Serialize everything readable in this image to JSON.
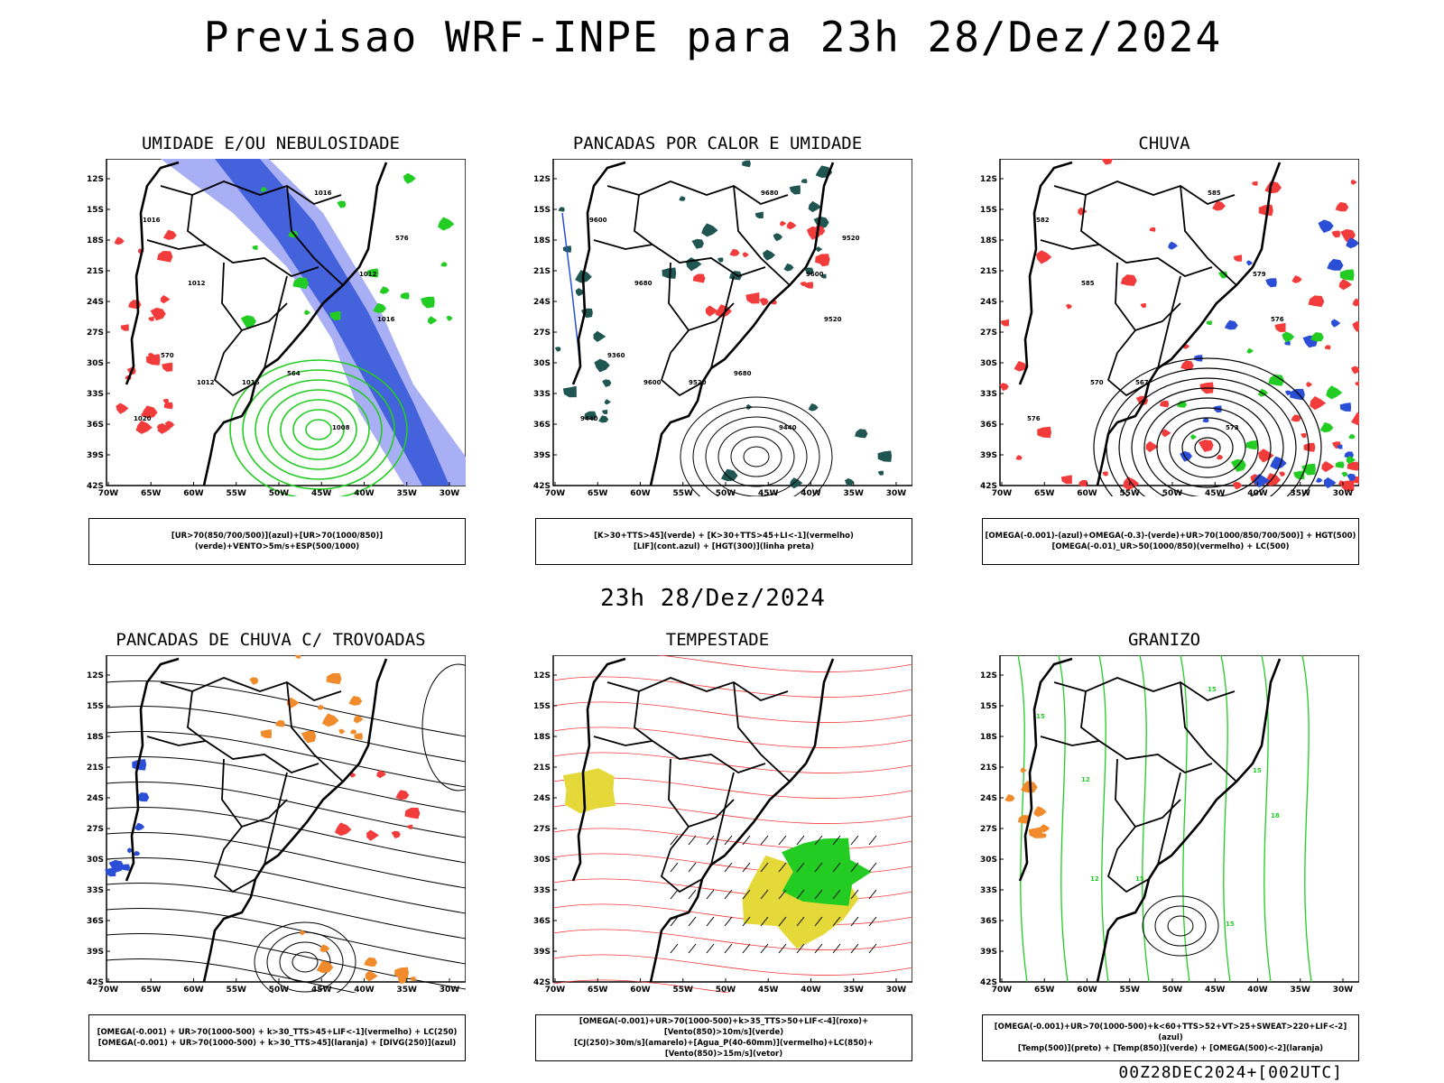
{
  "header": {
    "title": "Previsao WRF-INPE  para 23h 28/Dez/2024"
  },
  "mid_title": "23h 28/Dez/2024",
  "footer": "00Z28DEC2024+[002UTC]",
  "axes": {
    "lat_labels": [
      "12S",
      "15S",
      "18S",
      "21S",
      "24S",
      "27S",
      "30S",
      "33S",
      "36S",
      "39S",
      "42S"
    ],
    "lon_labels": [
      "70W",
      "65W",
      "60W",
      "55W",
      "50W",
      "45W",
      "40W",
      "35W",
      "30W"
    ]
  },
  "colors": {
    "blue": "#2a4fd6",
    "lightblue": "#a8aff5",
    "green": "#22cc22",
    "red": "#f23b3b",
    "darkteal": "#1f5652",
    "orange": "#f08a2a",
    "yellow": "#e5d93a"
  },
  "panels": [
    {
      "id": "umidade",
      "title": "UMIDADE E/OU NEBULOSIDADE",
      "legend": [
        "[UR>70(850/700/500)](azul)+[UR>70(1000/850)](verde)+VENTO>5m/s+ESP(500/1000)"
      ],
      "contour_labels": [
        "1016",
        "1012",
        "1016",
        "1012",
        "1016",
        "1008",
        "1012",
        "1016",
        "1020",
        "570",
        "576",
        "564"
      ]
    },
    {
      "id": "pancadas",
      "title": "PANCADAS POR CALOR E UMIDADE",
      "legend": [
        "[K>30+TTS>45](verde) + [K>30+TTS>45+LI<-1](vermelho)",
        "[LIF](cont.azul) + [HGT(300)](linha preta)"
      ],
      "contour_labels": [
        "9600",
        "9680",
        "9680",
        "9600",
        "9520",
        "9440",
        "9600",
        "9520",
        "9440",
        "9360",
        "9520",
        "9680"
      ]
    },
    {
      "id": "chuva",
      "title": "CHUVA",
      "legend": [
        "[OMEGA(-0.001)-(azul)+OMEGA(-0.3)-(verde)+UR>70(1000/850/700/500)] + HGT(500)",
        "[OMEGA(-0.01)_UR>50(1000/850)(vermelho) + LC(500)"
      ],
      "contour_labels": [
        "582",
        "585",
        "585",
        "579",
        "576",
        "573",
        "570",
        "567",
        "576"
      ]
    },
    {
      "id": "trovoadas",
      "title": "PANCADAS DE CHUVA C/ TROVOADAS",
      "legend": [
        "[OMEGA(-0.001) + UR>70(1000-500) + k>30_TTS>45+LIF<-1](vermelho) + LC(250)",
        "[OMEGA(-0.001) + UR>70(1000-500) + k>30_TTS>45](laranja) + [DIVG(250)](azul)"
      ],
      "contour_labels": []
    },
    {
      "id": "tempestade",
      "title": "TEMPESTADE",
      "legend": [
        "[OMEGA(-0.001)+UR>70(1000-500)+k>35_TTS>50+LIF<-4](roxo)+[Vento(850)>10m/s](verde)",
        "[CJ(250)>30m/s](amarelo)+[Agua_P(40-60mm)](vermelho)+LC(850)+[Vento(850)>15m/s](vetor)"
      ],
      "contour_labels": []
    },
    {
      "id": "granizo",
      "title": "GRANIZO",
      "legend": [
        "[OMEGA(-0.001)+UR>70(1000-500)+k<60+TTS>52+VT>25+SWEAT>220+LIF<-2](azul)",
        "[Temp(500)](preto) + [Temp(850)](verde) + [OMEGA(500)<-2](laranja)"
      ],
      "contour_labels": [
        "15",
        "12",
        "15",
        "15",
        "18",
        "15",
        "12",
        "15"
      ]
    }
  ]
}
